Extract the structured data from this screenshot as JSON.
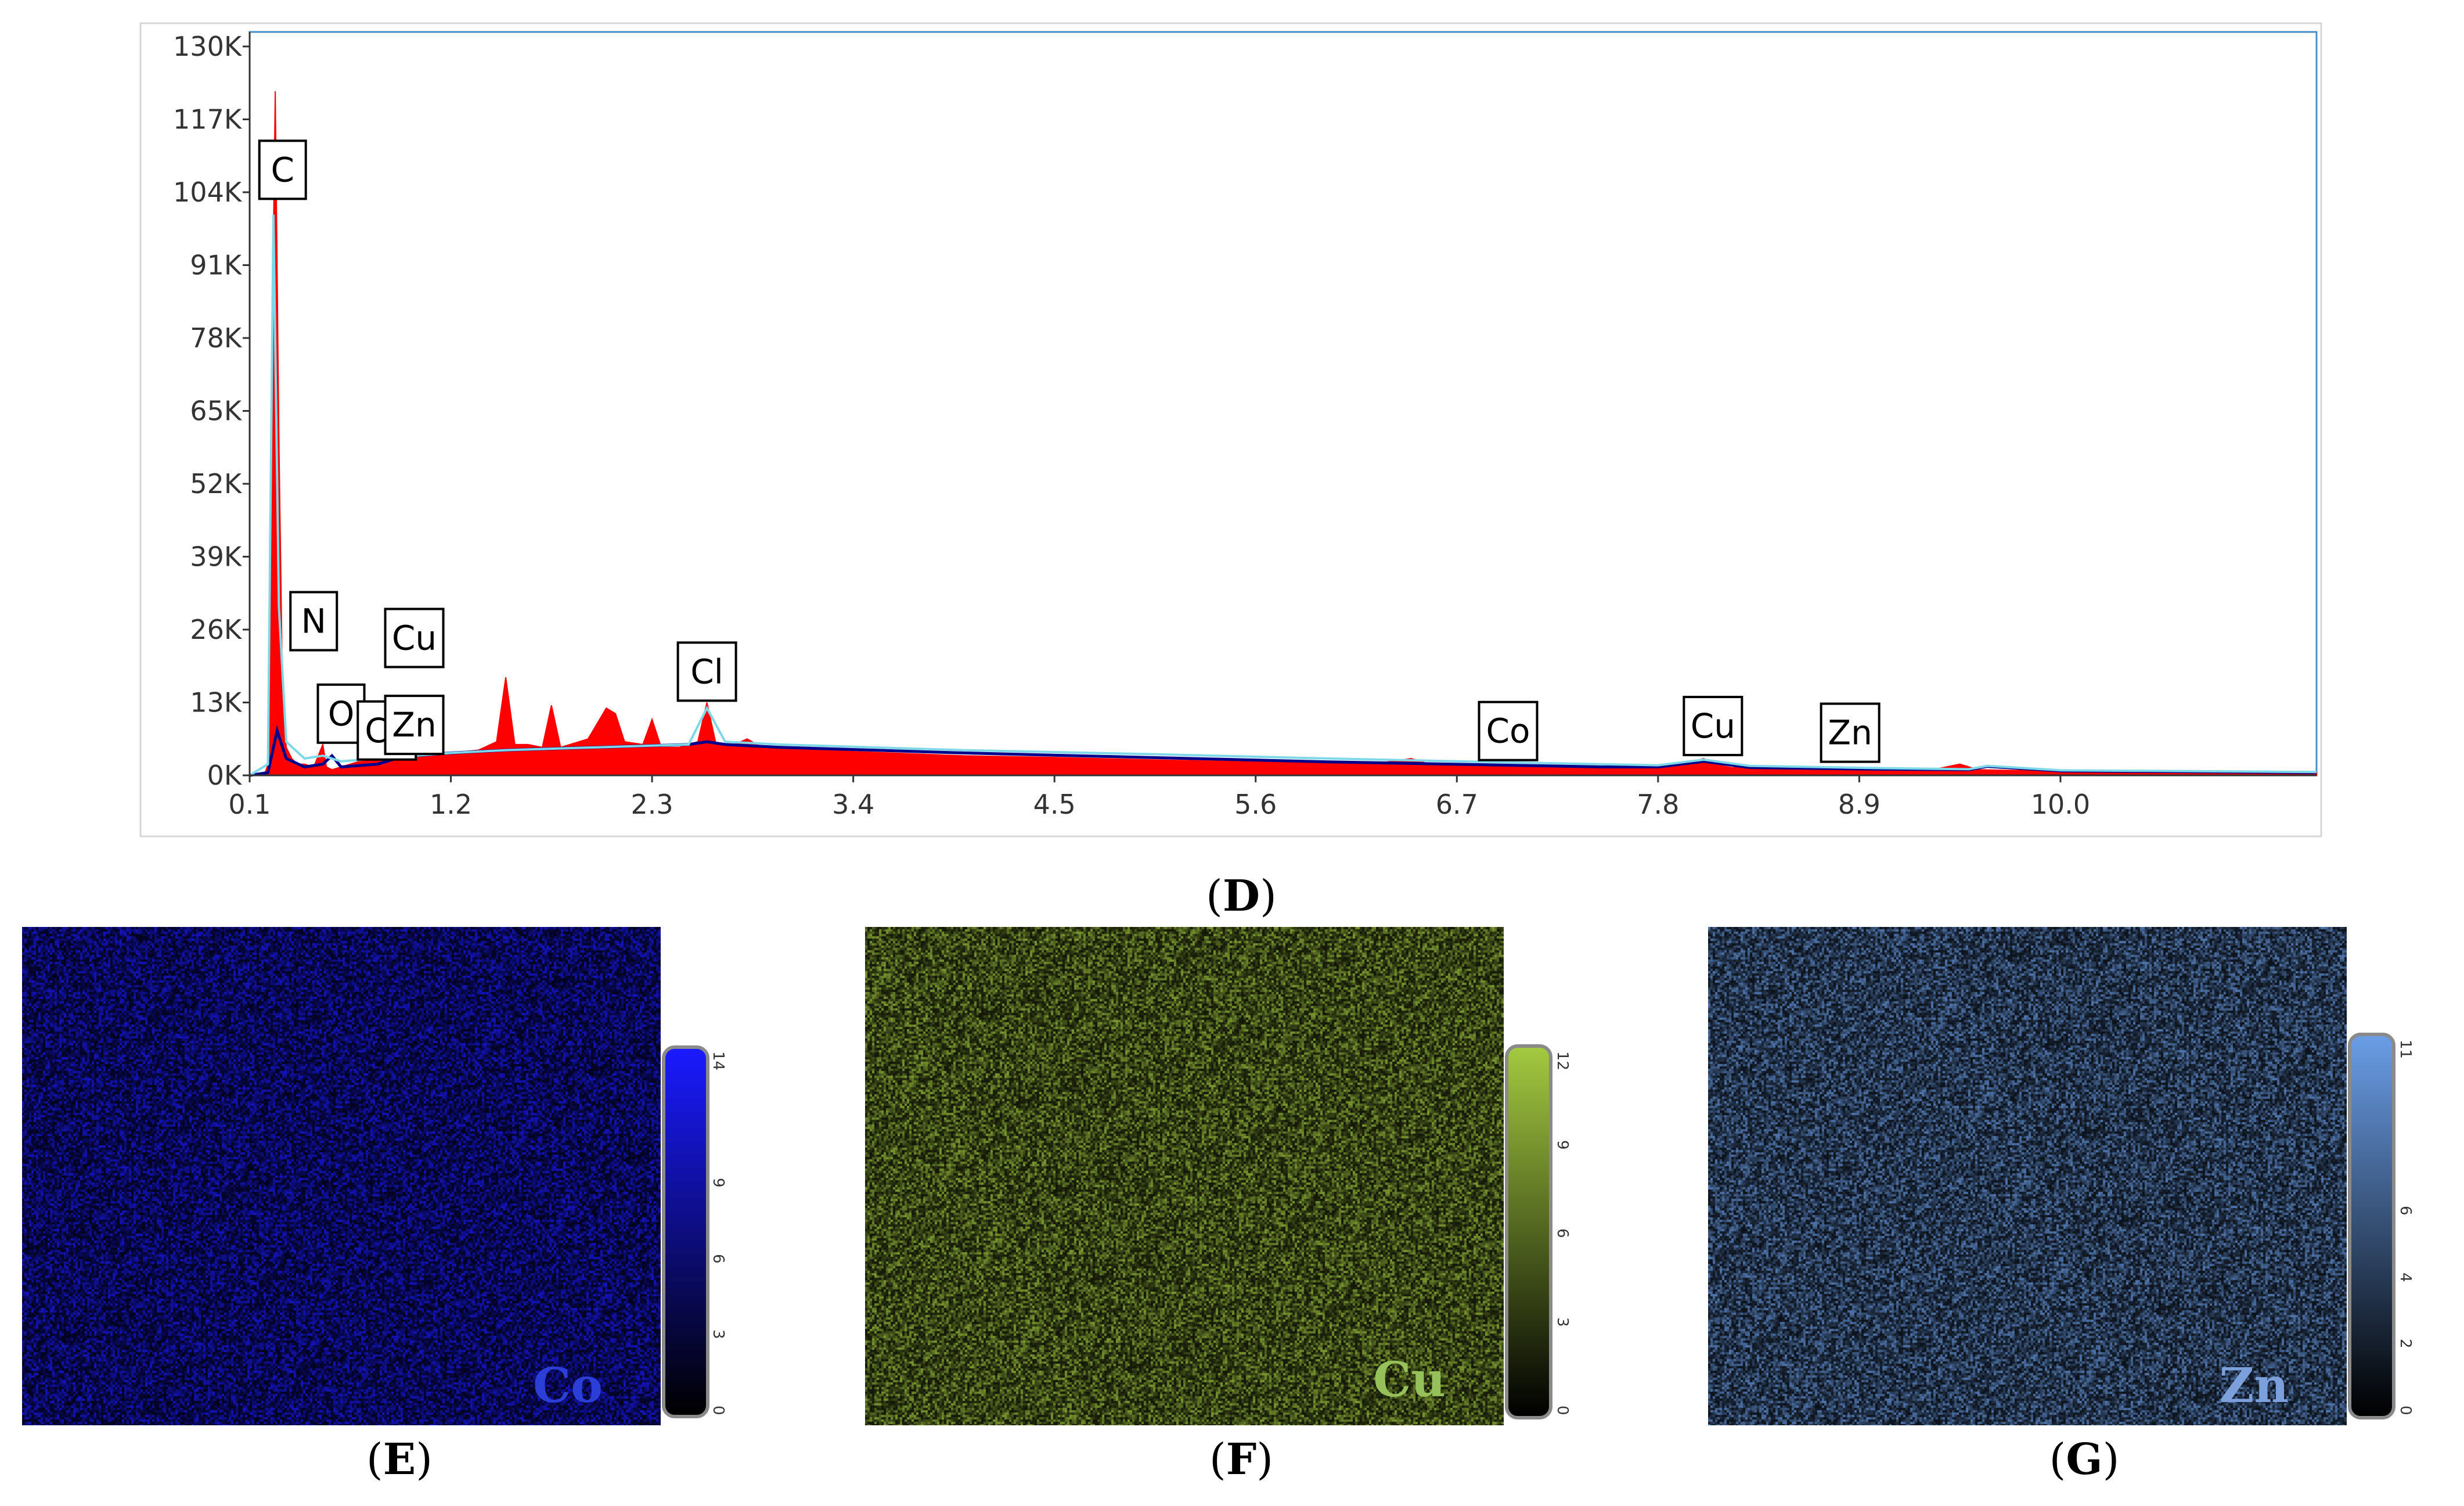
{
  "chart_data": [
    {
      "type": "area",
      "panel_label": "D",
      "y_ticks": [
        "130K",
        "117K",
        "104K",
        "91K",
        "78K",
        "65K",
        "52K",
        "39K",
        "26K",
        "13K",
        "0K"
      ],
      "x_ticks": [
        "0.1",
        "1.2",
        "2.3",
        "3.4",
        "4.5",
        "5.6",
        "6.7",
        "7.8",
        "8.9",
        "10.0"
      ],
      "xlim": [
        0.1,
        11.4
      ],
      "ylim": [
        0,
        130000
      ],
      "grid": false,
      "series": [
        {
          "color": "#ff0000",
          "x": [
            0.1,
            0.18,
            0.2,
            0.22,
            0.24,
            0.26,
            0.28,
            0.3,
            0.33,
            0.36,
            0.4,
            0.45,
            0.5,
            0.52,
            0.55,
            0.6,
            0.7,
            0.8,
            0.85,
            0.9,
            0.93,
            0.96,
            1.0,
            1.05,
            1.2,
            1.35,
            1.45,
            1.5,
            1.55,
            1.62,
            1.7,
            1.75,
            1.8,
            1.85,
            1.95,
            2.05,
            2.1,
            2.15,
            2.25,
            2.3,
            2.35,
            2.45,
            2.55,
            2.6,
            2.65,
            2.75,
            2.82,
            2.9,
            3.2,
            3.6,
            4.0,
            4.5,
            5.0,
            5.6,
            6.2,
            6.35,
            6.45,
            6.55,
            7.0,
            7.5,
            7.8,
            8.0,
            8.05,
            8.1,
            8.2,
            8.6,
            9.0,
            9.3,
            9.45,
            9.55,
            9.7,
            10.0,
            10.5,
            11.0,
            11.4
          ],
          "values": [
            0,
            0,
            2000,
            70000,
            122000,
            60000,
            14000,
            5000,
            3000,
            2000,
            2000,
            1500,
            5500,
            1500,
            1000,
            1500,
            2500,
            3500,
            5000,
            7000,
            5000,
            3500,
            3000,
            3500,
            4000,
            4500,
            6000,
            17500,
            5500,
            5500,
            5000,
            12500,
            5000,
            5500,
            6500,
            12000,
            11000,
            6000,
            5500,
            10000,
            5000,
            5000,
            6000,
            13000,
            5500,
            5500,
            6500,
            5000,
            4500,
            4000,
            3500,
            3200,
            2800,
            2400,
            2000,
            2500,
            3000,
            2000,
            1800,
            1500,
            1500,
            2500,
            3000,
            2000,
            1400,
            1300,
            1200,
            1000,
            2000,
            1000,
            900,
            800,
            700,
            600,
            500
          ]
        },
        {
          "color": "#00008b",
          "x": [
            0.1,
            0.2,
            0.25,
            0.3,
            0.4,
            0.5,
            0.55,
            0.6,
            0.8,
            0.9,
            1.0,
            1.2,
            1.5,
            2.0,
            2.5,
            2.6,
            2.7,
            3.0,
            4.0,
            5.0,
            6.0,
            7.0,
            7.5,
            7.8,
            8.05,
            8.3,
            9.0,
            9.5,
            9.6,
            10.0,
            11.4
          ],
          "values": [
            0,
            500,
            8000,
            3000,
            1500,
            2000,
            3500,
            1500,
            2000,
            3000,
            3500,
            4000,
            4500,
            5000,
            5500,
            6000,
            5500,
            5000,
            4000,
            3200,
            2400,
            1800,
            1500,
            1500,
            2500,
            1400,
            1100,
            1000,
            1600,
            800,
            500
          ]
        },
        {
          "color": "#7fd8e8",
          "x": [
            0.1,
            0.2,
            0.23,
            0.26,
            0.3,
            0.4,
            0.5,
            0.6,
            0.8,
            1.0,
            1.2,
            1.5,
            2.0,
            2.5,
            2.6,
            2.7,
            3.0,
            4.0,
            5.0,
            6.0,
            7.0,
            7.8,
            8.05,
            8.3,
            9.0,
            9.5,
            9.6,
            10.0,
            11.4
          ],
          "values": [
            0,
            2000,
            100000,
            30000,
            6000,
            3000,
            3500,
            2500,
            3000,
            3500,
            4000,
            4500,
            5000,
            5500,
            12000,
            6000,
            5500,
            4500,
            3800,
            3000,
            2300,
            1800,
            2800,
            1700,
            1300,
            1100,
            1700,
            900,
            600
          ]
        }
      ],
      "peak_labels": [
        {
          "text": "C",
          "x": 0.28,
          "y": 108000
        },
        {
          "text": "N",
          "x": 0.45,
          "y": 27500
        },
        {
          "text": "Cu",
          "x": 1.0,
          "y": 24500
        },
        {
          "text": "O",
          "x": 0.6,
          "y": 11000
        },
        {
          "text": "Co",
          "x": 0.85,
          "y": 8000
        },
        {
          "text": "Zn",
          "x": 1.0,
          "y": 9000
        },
        {
          "text": "Cl",
          "x": 2.6,
          "y": 18500
        },
        {
          "text": "Co",
          "x": 6.98,
          "y": 7900
        },
        {
          "text": "Cu",
          "x": 8.1,
          "y": 8800
        },
        {
          "text": "Zn",
          "x": 8.85,
          "y": 7600
        }
      ]
    },
    {
      "type": "heatmap",
      "panel_label": "E",
      "element": "Co",
      "color": "#1a1aff",
      "label_color": "#2b3fd6",
      "colorbar_ticks": [
        "14",
        "9",
        "6",
        "3",
        "0"
      ],
      "colorbar_range": [
        0,
        14
      ]
    },
    {
      "type": "heatmap",
      "panel_label": "F",
      "element": "Cu",
      "color": "#a3c940",
      "label_color": "#96c05a",
      "colorbar_ticks": [
        "12",
        "9",
        "6",
        "3",
        "0"
      ],
      "colorbar_range": [
        0,
        12
      ]
    },
    {
      "type": "heatmap",
      "panel_label": "G",
      "element": "Zn",
      "color": "#6a9de6",
      "label_color": "#7ca0dc",
      "colorbar_ticks": [
        "11",
        "6",
        "4",
        "2",
        "0"
      ],
      "colorbar_range": [
        0,
        11
      ]
    }
  ]
}
